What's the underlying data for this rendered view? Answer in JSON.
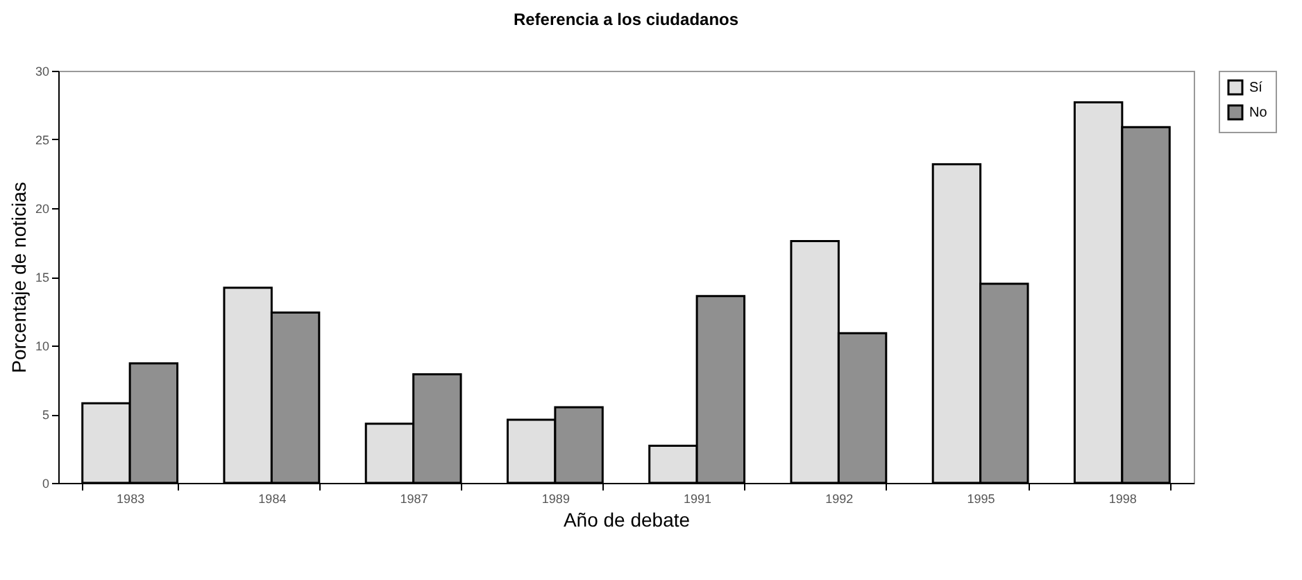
{
  "chart_data": {
    "type": "bar",
    "title": "Referencia a los ciudadanos",
    "xlabel": "Año de debate",
    "ylabel": "Porcentaje de noticias",
    "categories": [
      "1983",
      "1984",
      "1987",
      "1989",
      "1991",
      "1992",
      "1995",
      "1998"
    ],
    "series": [
      {
        "name": "Sí",
        "color": "#e0e0e0",
        "values": [
          5.8,
          14.2,
          4.3,
          4.6,
          2.7,
          17.6,
          23.2,
          27.7
        ]
      },
      {
        "name": "No",
        "color": "#909090",
        "values": [
          8.7,
          12.4,
          7.9,
          5.5,
          13.6,
          10.9,
          14.5,
          25.9
        ]
      }
    ],
    "ylim": [
      0,
      30
    ],
    "yticks": [
      0,
      5,
      10,
      15,
      20,
      25,
      30
    ],
    "grid": false,
    "legend": "right"
  }
}
